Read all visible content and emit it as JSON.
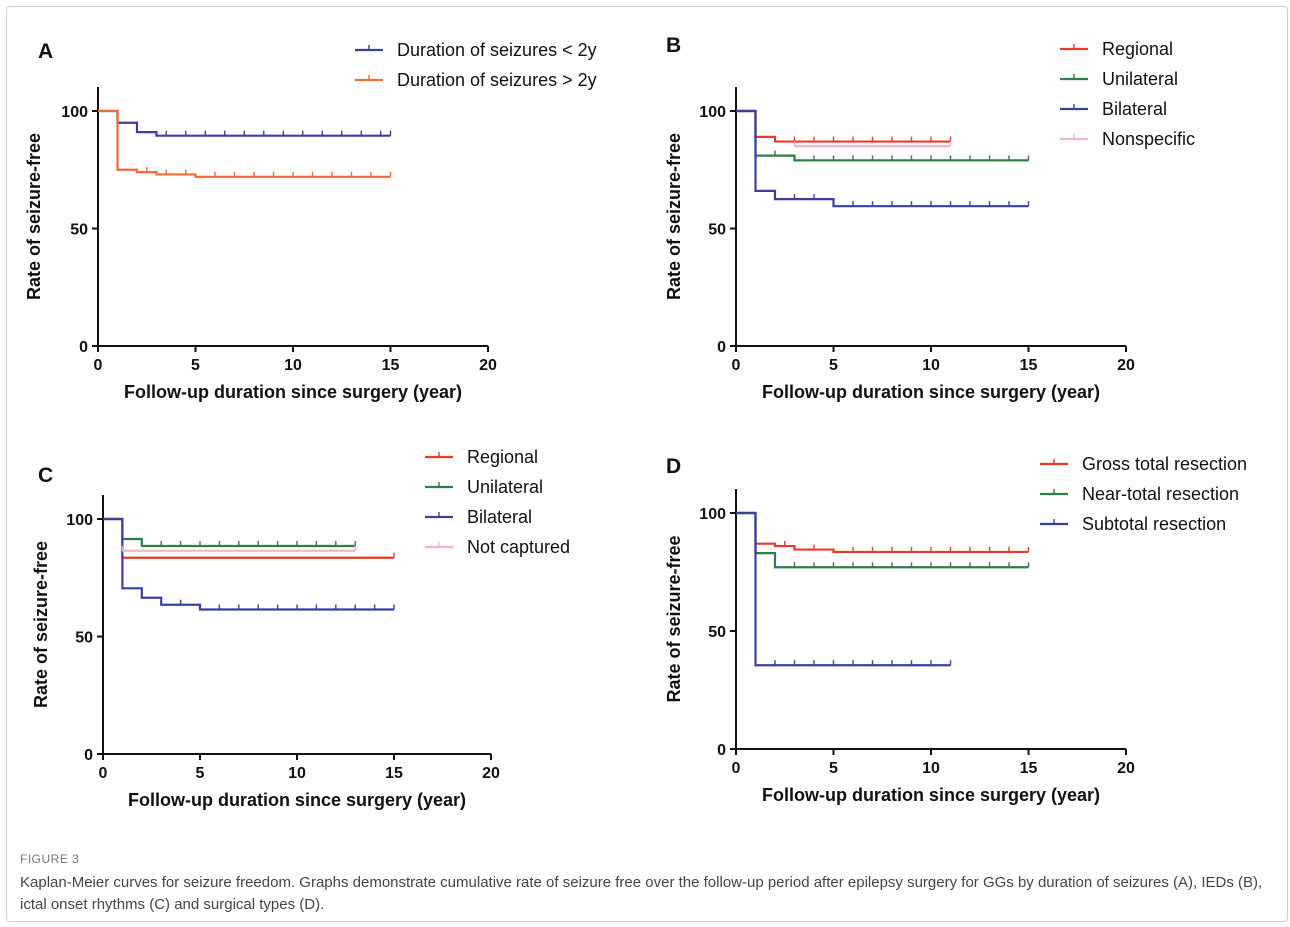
{
  "figure": {
    "label": "FIGURE 3",
    "caption": "Kaplan-Meier curves for seizure freedom. Graphs demonstrate cumulative rate of seizure free over the follow-up period after epilepsy surgery for GGs by duration of seizures (A), IEDs (B), ictal onset rhythms (C) and surgical types (D)."
  },
  "chart_data": [
    {
      "panel": "A",
      "type": "line",
      "xlabel": "Follow-up duration since surgery (year)",
      "ylabel": "Rate of seizure-free",
      "xlim": [
        0,
        20
      ],
      "ylim": [
        0,
        100
      ],
      "xticks": [
        0,
        5,
        10,
        15,
        20
      ],
      "yticks": [
        0,
        50,
        100
      ],
      "legend_position": "top-right",
      "series": [
        {
          "name": "Duration of seizures < 2y",
          "color": "#3a3f9e",
          "steps": [
            [
              0,
              100
            ],
            [
              1,
              95
            ],
            [
              2,
              91
            ],
            [
              3,
              89.5
            ],
            [
              15,
              89.5
            ]
          ],
          "censor": [
            3.5,
            4.5,
            5.5,
            6.5,
            7.5,
            8.5,
            9.5,
            10.5,
            11.5,
            12.5,
            13.5,
            14.5,
            15
          ]
        },
        {
          "name": "Duration of seizures > 2y",
          "color": "#f06a3a",
          "steps": [
            [
              0,
              100
            ],
            [
              1,
              75
            ],
            [
              2,
              74
            ],
            [
              3,
              73
            ],
            [
              5,
              72
            ],
            [
              15,
              72
            ]
          ],
          "censor": [
            2.5,
            3.5,
            4.5,
            6,
            7,
            8,
            9,
            10,
            11,
            12,
            13,
            14,
            15
          ]
        }
      ]
    },
    {
      "panel": "B",
      "type": "line",
      "xlabel": "Follow-up duration since surgery (year)",
      "ylabel": "Rate of seizure-free",
      "xlim": [
        0,
        20
      ],
      "ylim": [
        0,
        100
      ],
      "xticks": [
        0,
        5,
        10,
        15,
        20
      ],
      "yticks": [
        0,
        50,
        100
      ],
      "legend_position": "top-right",
      "series": [
        {
          "name": "Regional",
          "color": "#e8392a",
          "steps": [
            [
              0,
              100
            ],
            [
              1,
              89
            ],
            [
              2,
              87
            ],
            [
              11,
              87
            ]
          ],
          "censor": [
            3,
            4,
            5,
            6,
            7,
            8,
            9,
            10,
            11
          ]
        },
        {
          "name": "Unilateral",
          "color": "#2e7d4a",
          "steps": [
            [
              0,
              100
            ],
            [
              1,
              81
            ],
            [
              3,
              79
            ],
            [
              15,
              79
            ]
          ],
          "censor": [
            2,
            4,
            5,
            6,
            7,
            8,
            9,
            10,
            11,
            12,
            13,
            14,
            15
          ]
        },
        {
          "name": "Bilateral",
          "color": "#3a3f9e",
          "steps": [
            [
              0,
              100
            ],
            [
              1,
              66
            ],
            [
              2,
              62.5
            ],
            [
              5,
              59.5
            ],
            [
              15,
              59.5
            ]
          ],
          "censor": [
            3,
            4,
            6,
            7,
            8,
            9,
            10,
            11,
            12,
            13,
            14,
            15
          ]
        },
        {
          "name": "Nonspecific",
          "color": "#f3b6bf",
          "steps": [
            [
              3,
              85
            ],
            [
              11,
              85
            ]
          ],
          "censor": [
            3,
            11
          ]
        }
      ]
    },
    {
      "panel": "C",
      "type": "line",
      "xlabel": "Follow-up duration since surgery (year)",
      "ylabel": "Rate of seizure-free",
      "xlim": [
        0,
        20
      ],
      "ylim": [
        0,
        100
      ],
      "xticks": [
        0,
        5,
        10,
        15,
        20
      ],
      "yticks": [
        0,
        50,
        100
      ],
      "legend_position": "top-right",
      "series": [
        {
          "name": "Regional",
          "color": "#e8392a",
          "steps": [
            [
              0,
              100
            ],
            [
              1,
              83.5
            ],
            [
              15,
              83.5
            ]
          ],
          "censor": [
            15
          ]
        },
        {
          "name": "Unilateral",
          "color": "#2e7d4a",
          "steps": [
            [
              0,
              100
            ],
            [
              1,
              91.5
            ],
            [
              2,
              88.5
            ],
            [
              13,
              88.5
            ]
          ],
          "censor": [
            3,
            4,
            5,
            6,
            7,
            8,
            9,
            10,
            11,
            12,
            13
          ]
        },
        {
          "name": "Bilateral",
          "color": "#3a3f9e",
          "steps": [
            [
              0,
              100
            ],
            [
              1,
              70.5
            ],
            [
              2,
              66.5
            ],
            [
              3,
              63.5
            ],
            [
              5,
              61.5
            ],
            [
              15,
              61.5
            ]
          ],
          "censor": [
            4,
            6,
            7,
            8,
            9,
            10,
            11,
            12,
            13,
            14,
            15
          ]
        },
        {
          "name": "Not captured",
          "color": "#f3b6bf",
          "steps": [
            [
              1,
              86.5
            ],
            [
              13,
              86.5
            ]
          ],
          "censor": [
            1,
            13
          ]
        }
      ]
    },
    {
      "panel": "D",
      "type": "line",
      "xlabel": "Follow-up duration since surgery (year)",
      "ylabel": "Rate of seizure-free",
      "xlim": [
        0,
        20
      ],
      "ylim": [
        0,
        100
      ],
      "xticks": [
        0,
        5,
        10,
        15,
        20
      ],
      "yticks": [
        0,
        50,
        100
      ],
      "legend_position": "top-right",
      "series": [
        {
          "name": "Gross total resection",
          "color": "#e8392a",
          "steps": [
            [
              0,
              100
            ],
            [
              1,
              87
            ],
            [
              2,
              86
            ],
            [
              3,
              84.5
            ],
            [
              5,
              83.5
            ],
            [
              15,
              83.5
            ]
          ],
          "censor": [
            2.5,
            4,
            6,
            7,
            8,
            9,
            10,
            11,
            12,
            13,
            14,
            15
          ]
        },
        {
          "name": "Near-total resection",
          "color": "#2e7d4a",
          "steps": [
            [
              0,
              100
            ],
            [
              1,
              83
            ],
            [
              2,
              77
            ],
            [
              15,
              77
            ]
          ],
          "censor": [
            3,
            4,
            5,
            6,
            7,
            8,
            9,
            10,
            11,
            12,
            13,
            14,
            15
          ]
        },
        {
          "name": "Subtotal resection",
          "color": "#3a3f9e",
          "steps": [
            [
              0,
              100
            ],
            [
              1,
              35.5
            ],
            [
              11,
              35.5
            ]
          ],
          "censor": [
            2,
            3,
            4,
            5,
            6,
            7,
            8,
            9,
            10,
            11
          ]
        }
      ]
    }
  ]
}
